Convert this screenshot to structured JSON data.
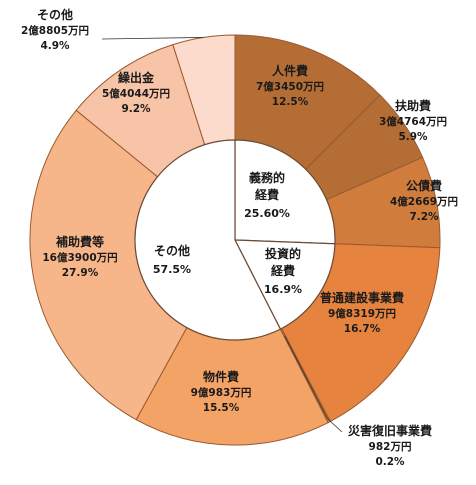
{
  "chart_data": {
    "type": "pie",
    "subtype": "nested-donut",
    "outer_ring": [
      {
        "name": "人件費",
        "amount": "7億3450万円",
        "pct": "12.5%",
        "value": 12.5,
        "color": "#b46e35"
      },
      {
        "name": "扶助費",
        "amount": "3億4764万円",
        "pct": "5.9%",
        "value": 5.9,
        "color": "#b46e35"
      },
      {
        "name": "公債費",
        "amount": "4億2669万円",
        "pct": "7.2%",
        "value": 7.2,
        "color": "#d07c3d"
      },
      {
        "name": "普通建設事業費",
        "amount": "9億8319万円",
        "pct": "16.7%",
        "value": 16.7,
        "color": "#e6833e"
      },
      {
        "name": "災害復旧事業費",
        "amount": "982万円",
        "pct": "0.2%",
        "value": 0.2,
        "color": "#e6833e"
      },
      {
        "name": "物件費",
        "amount": "9億983万円",
        "pct": "15.5%",
        "value": 15.5,
        "color": "#f4a366"
      },
      {
        "name": "補助費等",
        "amount": "16億3900万円",
        "pct": "27.9%",
        "value": 27.9,
        "color": "#f7b58a"
      },
      {
        "name": "繰出金",
        "amount": "5億4044万円",
        "pct": "9.2%",
        "value": 9.2,
        "color": "#f8c4a8"
      },
      {
        "name": "その他",
        "amount": "2億8805万円",
        "pct": "4.9%",
        "value": 4.9,
        "color": "#fcdbcc"
      }
    ],
    "inner_ring": [
      {
        "name_lines": [
          "義務的",
          "経費"
        ],
        "pct": "25.60%",
        "value": 25.6
      },
      {
        "name_lines": [
          "投資的",
          "経費"
        ],
        "pct": "16.9%",
        "value": 16.9
      },
      {
        "name_lines": [
          "その他"
        ],
        "pct": "57.5%",
        "value": 57.5
      }
    ],
    "start_angle_deg": 0,
    "direction": "clockwise"
  }
}
